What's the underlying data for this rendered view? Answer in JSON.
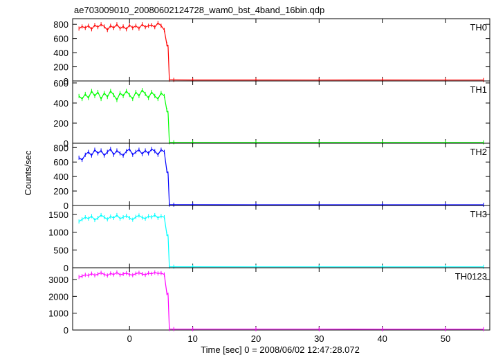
{
  "title": "ae703009010_20080602124728_wam0_bst_4band_16bin.qdp",
  "ylabel": "Counts/sec",
  "xlabel": "Time [sec] 0 = 2008/06/02 12:47:28.072",
  "chart_data": {
    "type": "line",
    "title": "ae703009010_20080602124728_wam0_bst_4band_16bin.qdp",
    "xlabel": "Time [sec] 0 = 2008/06/02 12:47:28.072",
    "ylabel": "Counts/sec",
    "xlim": [
      -9,
      57
    ],
    "x_ticks": [
      0,
      10,
      20,
      30,
      40,
      50
    ],
    "x_tick_labels": [
      "0",
      "10",
      "20",
      "30",
      "40",
      "50"
    ],
    "grid": false,
    "drop_time": 6.3,
    "panels": [
      {
        "name": "TH0",
        "color": "#ff0000",
        "ylim": [
          0,
          880
        ],
        "yticks": [
          0,
          200,
          400,
          600,
          800
        ],
        "ytick_labels": [
          "0",
          "200",
          "400",
          "600",
          "800"
        ],
        "series": [
          {
            "x": [
              -8,
              -7.5,
              -7,
              -6.5,
              -6,
              -5.5,
              -5,
              -4.5,
              -4,
              -3.5,
              -3,
              -2.5,
              -2,
              -1.5,
              -1,
              -0.5,
              0,
              0.5,
              1,
              1.5,
              2,
              2.5,
              3,
              3.5,
              4,
              4.5,
              5,
              5.5,
              5.9,
              6.1,
              6.3,
              7,
              10,
              20,
              30,
              40,
              50,
              56
            ],
            "y": [
              740,
              770,
              750,
              780,
              730,
              790,
              760,
              800,
              770,
              720,
              780,
              750,
              800,
              740,
              770,
              730,
              790,
              750,
              780,
              740,
              800,
              760,
              780,
              790,
              760,
              820,
              780,
              720,
              520,
              480,
              18,
              15,
              14,
              14,
              13,
              14,
              13,
              13
            ]
          }
        ]
      },
      {
        "name": "TH1",
        "color": "#00ff00",
        "ylim": [
          0,
          620
        ],
        "yticks": [
          0,
          200,
          400,
          600
        ],
        "ytick_labels": [
          "0",
          "200",
          "400",
          "600"
        ],
        "series": [
          {
            "x": [
              -8,
              -7.5,
              -7,
              -6.5,
              -6,
              -5.5,
              -5,
              -4.5,
              -4,
              -3.5,
              -3,
              -2.5,
              -2,
              -1.5,
              -1,
              -0.5,
              0,
              0.5,
              1,
              1.5,
              2,
              2.5,
              3,
              3.5,
              4,
              4.5,
              5,
              5.5,
              5.9,
              6.1,
              6.3,
              7,
              10,
              20,
              30,
              40,
              50,
              56
            ],
            "y": [
              470,
              440,
              490,
              450,
              520,
              470,
              510,
              440,
              500,
              460,
              520,
              480,
              430,
              500,
              470,
              520,
              480,
              440,
              510,
              470,
              530,
              490,
              450,
              510,
              470,
              440,
              500,
              470,
              330,
              300,
              10,
              9,
              9,
              8,
              8,
              8,
              8,
              8
            ]
          }
        ]
      },
      {
        "name": "TH2",
        "color": "#0000ff",
        "ylim": [
          0,
          860
        ],
        "yticks": [
          0,
          200,
          400,
          600,
          800
        ],
        "ytick_labels": [
          "0",
          "200",
          "400",
          "600",
          "800"
        ],
        "series": [
          {
            "x": [
              -8,
              -7.5,
              -7,
              -6.5,
              -6,
              -5.5,
              -5,
              -4.5,
              -4,
              -3.5,
              -3,
              -2.5,
              -2,
              -1.5,
              -1,
              -0.5,
              0,
              0.5,
              1,
              1.5,
              2,
              2.5,
              3,
              3.5,
              4,
              4.5,
              5,
              5.5,
              5.9,
              6.1,
              6.3,
              7,
              10,
              20,
              30,
              40,
              50,
              56
            ],
            "y": [
              660,
              630,
              700,
              740,
              690,
              770,
              720,
              760,
              690,
              740,
              780,
              700,
              760,
              720,
              690,
              750,
              780,
              700,
              740,
              770,
              710,
              760,
              720,
              780,
              750,
              700,
              770,
              740,
              480,
              440,
              12,
              11,
              11,
              10,
              10,
              10,
              10,
              10
            ]
          }
        ]
      },
      {
        "name": "TH3",
        "color": "#00ffff",
        "ylim": [
          0,
          1750
        ],
        "yticks": [
          0,
          500,
          1000,
          1500
        ],
        "ytick_labels": [
          "0",
          "500",
          "1000",
          "1500"
        ],
        "series": [
          {
            "x": [
              -8,
              -7.5,
              -7,
              -6.5,
              -6,
              -5.5,
              -5,
              -4.5,
              -4,
              -3.5,
              -3,
              -2.5,
              -2,
              -1.5,
              -1,
              -0.5,
              0,
              0.5,
              1,
              1.5,
              2,
              2.5,
              3,
              3.5,
              4,
              4.5,
              5,
              5.5,
              5.9,
              6.1,
              6.3,
              7,
              10,
              20,
              30,
              40,
              50,
              56
            ],
            "y": [
              1300,
              1360,
              1420,
              1380,
              1450,
              1340,
              1400,
              1480,
              1420,
              1360,
              1440,
              1400,
              1480,
              1380,
              1420,
              1460,
              1400,
              1350,
              1430,
              1470,
              1410,
              1380,
              1450,
              1420,
              1480,
              1400,
              1450,
              1420,
              950,
              880,
              30,
              28,
              27,
              26,
              26,
              25,
              25,
              25
            ]
          }
        ]
      },
      {
        "name": "TH0123",
        "color": "#ff00ff",
        "ylim": [
          0,
          3700
        ],
        "yticks": [
          0,
          1000,
          2000,
          3000
        ],
        "ytick_labels": [
          "0",
          "1000",
          "2000",
          "3000"
        ],
        "series": [
          {
            "x": [
              -8,
              -7.5,
              -7,
              -6.5,
              -6,
              -5.5,
              -5,
              -4.5,
              -4,
              -3.5,
              -3,
              -2.5,
              -2,
              -1.5,
              -1,
              -0.5,
              0,
              0.5,
              1,
              1.5,
              2,
              2.5,
              3,
              3.5,
              4,
              4.5,
              5,
              5.5,
              5.9,
              6.1,
              6.3,
              7,
              10,
              20,
              30,
              40,
              50,
              56
            ],
            "y": [
              3150,
              3200,
              3280,
              3240,
              3350,
              3250,
              3320,
              3400,
              3300,
              3240,
              3360,
              3300,
              3420,
              3280,
              3330,
              3380,
              3300,
              3260,
              3350,
              3400,
              3330,
              3280,
              3380,
              3340,
              3420,
              3360,
              3380,
              3300,
              2200,
              2100,
              60,
              55,
              55,
              52,
              52,
              50,
              50,
              50
            ]
          }
        ]
      }
    ]
  }
}
